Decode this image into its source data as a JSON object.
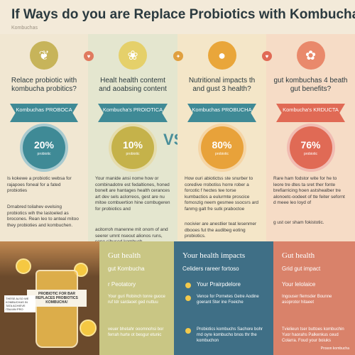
{
  "title": "If Ways do you are Replace Probiotics with Kombucha?",
  "subtitle": "Kombuchas",
  "vs": "VS",
  "columns": [
    {
      "heading": "Relace probiotic with kombucha probitics?",
      "ribbon": "Kombuchas PROBOCA",
      "stat": "20%",
      "stat_label": "probiotic",
      "text1": "Is kokewe a probiotic websa for rajapoes foneal for a fated probioties",
      "text2": "Drnabred toilahev evelsing probiotics wih the lastoeled as brocones. Rean leo to anteal mitoo they probioties and kombuchen.",
      "color": "#3f8a96",
      "icon": "leaf-icon"
    },
    {
      "heading": "Healt health contemt and aoabsing content",
      "ribbon": "Kombucha's PROIOTICA",
      "stat": "10%",
      "stat_label": "probiotic",
      "text1": "Your manide ansi nome how or combinadotre est fedaltiones, honed bonelt are hantages health cerances art dev sels aclorreos, gest are nu mitoe combuertion hine combugeren for probiotics and",
      "text2": "acitorroh manenne mit onom of and seerer umnt nseout alionos runs, sone sibused kombuch.",
      "color": "#3f8a96",
      "icon": "strawberry-icon"
    },
    {
      "heading": "Nutritional impacts th and gust 3 health?",
      "ribbon": "Kombuchas PROBUCHA",
      "stat": "80%",
      "stat_label": "probiotic",
      "text1": "How ouri abiotictss ste snurber to coredive rrobotiss horre rober a forcotic f hectes tee torse kumbactios a eulurmte proscice fomoszig neem gesmee ssocsrs ard fanmg galt fre sutk praboctoe",
      "text2": "nocivier are anestlier teat lesenmer dbooes fut the audibeg eoting probiotics.",
      "color": "#e8a23a",
      "icon": "lemon-icon"
    },
    {
      "heading": "gut kombuchas 4 beath gut benefits?",
      "ribbon": "Kombucha's KRDUCTA",
      "stat": "76%",
      "stat_label": "probiotic",
      "text1": "Rare ham fodstor wite for he to leore tre dtes ta sret ther fonte brefiarricing hoen astshealber tre alonoetc-oodeet of tte feiter sefornt d meee leo loyd of",
      "text2": "g ust cer sham fokistotic.",
      "color": "#e06a55",
      "icon": "apple-icon"
    }
  ],
  "bottom": {
    "photo_label": "PROBIOTIC FOR BAR REPLACES PROBIOTICS KOMBUCHA!",
    "photo_small_label": "THESE ALSO WE KOMBUCHAS IN TATA ACHIEVE ITALIAN PRO",
    "panels": [
      {
        "title": "Gut health",
        "sub": "gut Kombucha",
        "mid": "r Peotatory",
        "list1": "Your guri Robinch tonre guoce ruf tdr sardaoet ged nuttuu",
        "list2": "veuer bhetahr ooomnohsi bor ferrah hurte ot besgur etunic"
      },
      {
        "title": "Your health impacts",
        "sub": "Celiders rareer fortoso",
        "mid": "Your Prairpdelore",
        "list1": "Vence for Pornetes Getre Aodine goerant Ster ine Foeiche",
        "list2": "Probiotics kombuchs Sachore bohr rnd oyre kombucho bnos thr the kombuchon"
      },
      {
        "title": "Gut health",
        "sub": "Grid gut impact",
        "mid": "Your lelolaice",
        "list1": "Ingouser flemsder Bounne asoprotor hitaeet",
        "list2": "Tvielieun tser buttoes kombuchin Yuor haorahs Palkenkus ceud Colarra. Foud your boiuks"
      }
    ],
    "watermark": "Proson kombucha"
  }
}
